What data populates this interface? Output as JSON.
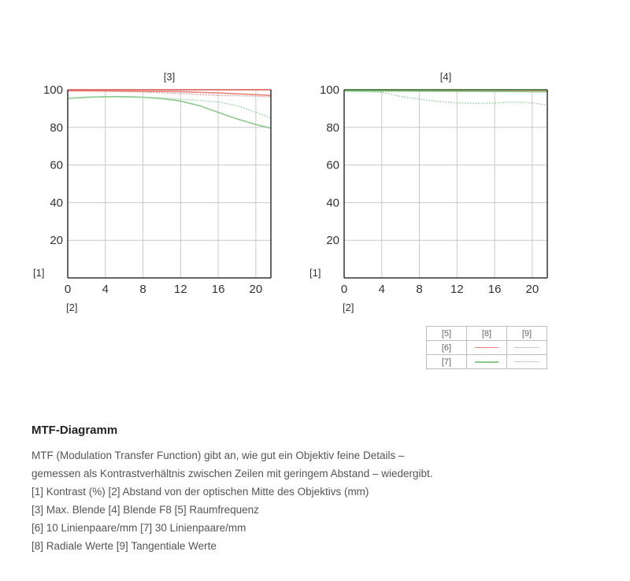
{
  "chart_data": [
    {
      "type": "line",
      "title": "[3]",
      "xlabel": "[2]",
      "ylabel": "[1]",
      "xlim": [
        0,
        21.6
      ],
      "ylim": [
        0,
        100
      ],
      "xticks": [
        0,
        4,
        8,
        12,
        16,
        20
      ],
      "yticks": [
        20,
        40,
        60,
        80,
        100
      ],
      "grid": true,
      "series": [
        {
          "name": "[6] [8]",
          "color": "#e8867c",
          "style": "solid",
          "x": [
            0,
            4,
            8,
            12,
            16,
            20,
            21.6
          ],
          "y": [
            99.4,
            99.4,
            99.2,
            99,
            98.3,
            97.4,
            97
          ]
        },
        {
          "name": "[6] [9]",
          "color": "#e8867c",
          "style": "dotted",
          "x": [
            0,
            4,
            8,
            12,
            16,
            20,
            21.6
          ],
          "y": [
            99.4,
            99.2,
            98.8,
            98,
            97,
            96.6,
            96.2
          ]
        },
        {
          "name": "[7] [8]",
          "color": "#8dc98d",
          "style": "solid",
          "x": [
            0,
            2,
            4,
            6,
            8,
            10,
            12,
            14,
            16,
            18,
            20,
            21.6
          ],
          "y": [
            95.4,
            96,
            96.3,
            96.3,
            96,
            95.3,
            94,
            91.5,
            88,
            84.5,
            81.5,
            79.6
          ]
        },
        {
          "name": "[7] [9]",
          "color": "#8dc98d",
          "style": "dotted",
          "x": [
            0,
            2,
            4,
            6,
            8,
            10,
            12,
            14,
            16,
            18,
            20,
            21.6
          ],
          "y": [
            95.4,
            95.9,
            96.2,
            96.2,
            96,
            95.6,
            95,
            94.3,
            93.5,
            91.5,
            88,
            85
          ]
        }
      ]
    },
    {
      "type": "line",
      "title": "[4]",
      "xlabel": "[2]",
      "ylabel": "[1]",
      "xlim": [
        0,
        21.6
      ],
      "ylim": [
        0,
        100
      ],
      "xticks": [
        0,
        4,
        8,
        12,
        16,
        20
      ],
      "yticks": [
        20,
        40,
        60,
        80,
        100
      ],
      "grid": true,
      "series": [
        {
          "name": "[6] [8]",
          "color": "#e8867c",
          "style": "solid",
          "x": [
            0,
            8,
            16,
            21.6
          ],
          "y": [
            99.7,
            99.7,
            99.7,
            99.6
          ]
        },
        {
          "name": "[6] [9]",
          "color": "#e8867c",
          "style": "dotted",
          "x": [
            0,
            8,
            16,
            21.6
          ],
          "y": [
            99.6,
            99.6,
            99.5,
            99.4
          ]
        },
        {
          "name": "[7] [8]",
          "color": "#8dc98d",
          "style": "solid",
          "x": [
            0,
            8,
            16,
            21.6
          ],
          "y": [
            99.3,
            99.2,
            99.1,
            98.9
          ]
        },
        {
          "name": "[7] [9]",
          "color": "#8dc98d",
          "style": "dotted",
          "x": [
            0,
            2,
            4,
            6,
            8,
            10,
            12,
            14,
            16,
            18,
            20,
            21.6
          ],
          "y": [
            99.3,
            99,
            98.6,
            96.5,
            95,
            93.8,
            93,
            92.8,
            92.9,
            93.5,
            93,
            91.8
          ]
        }
      ]
    }
  ],
  "legend": {
    "header": [
      "[5]",
      "[8]",
      "[9]"
    ],
    "rows": [
      "[6]",
      "[7]"
    ]
  },
  "description": {
    "heading": "MTF-Diagramm",
    "lines": [
      "MTF (Modulation Transfer Function) gibt an, wie gut ein Objektiv feine Details –",
      "gemessen als Kontrastverhältnis zwischen Zeilen mit geringem Abstand – wiedergibt.",
      "[1] Kontrast (%) [2] Abstand von der optischen Mitte des Objektivs (mm)",
      "[3] Max. Blende [4] Blende F8 [5] Raumfrequenz",
      "[6] 10 Linienpaare/mm [7] 30 Linienpaare/mm",
      "[8] Radiale Werte [9] Tangentiale Werte"
    ]
  }
}
